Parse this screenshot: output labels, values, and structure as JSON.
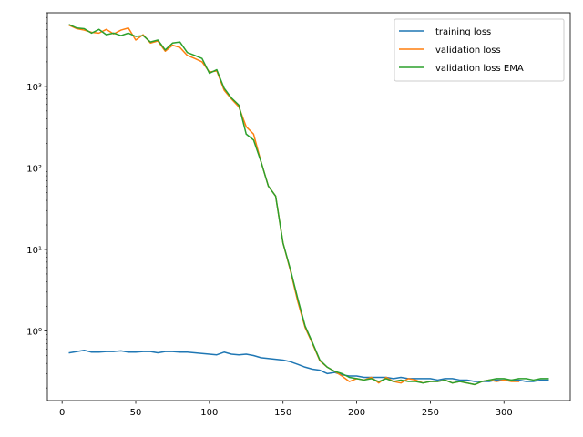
{
  "chart_data": {
    "type": "line",
    "title": "",
    "xlabel": "",
    "ylabel": "",
    "xlim": [
      -10,
      345
    ],
    "ylim": [
      0.14,
      8000
    ],
    "yscale": "log",
    "x_ticks": [
      0,
      50,
      100,
      150,
      200,
      250,
      300
    ],
    "y_ticks": [
      {
        "value": 1,
        "label": "10⁰"
      },
      {
        "value": 10,
        "label": "10¹"
      },
      {
        "value": 100,
        "label": "10²"
      },
      {
        "value": 1000,
        "label": "10³"
      }
    ],
    "grid": false,
    "legend_position": "top-right",
    "series": [
      {
        "name": "training loss",
        "color": "#1f77b4",
        "points": [
          [
            5,
            0.54
          ],
          [
            10,
            0.56
          ],
          [
            15,
            0.58
          ],
          [
            20,
            0.55
          ],
          [
            25,
            0.55
          ],
          [
            30,
            0.56
          ],
          [
            35,
            0.56
          ],
          [
            40,
            0.57
          ],
          [
            45,
            0.55
          ],
          [
            50,
            0.55
          ],
          [
            55,
            0.56
          ],
          [
            60,
            0.56
          ],
          [
            65,
            0.54
          ],
          [
            70,
            0.56
          ],
          [
            75,
            0.56
          ],
          [
            80,
            0.55
          ],
          [
            85,
            0.55
          ],
          [
            90,
            0.54
          ],
          [
            95,
            0.53
          ],
          [
            100,
            0.52
          ],
          [
            105,
            0.51
          ],
          [
            110,
            0.55
          ],
          [
            115,
            0.52
          ],
          [
            120,
            0.51
          ],
          [
            125,
            0.52
          ],
          [
            130,
            0.5
          ],
          [
            135,
            0.47
          ],
          [
            140,
            0.46
          ],
          [
            145,
            0.45
          ],
          [
            150,
            0.44
          ],
          [
            155,
            0.42
          ],
          [
            160,
            0.39
          ],
          [
            165,
            0.36
          ],
          [
            170,
            0.34
          ],
          [
            175,
            0.33
          ],
          [
            180,
            0.3
          ],
          [
            185,
            0.31
          ],
          [
            190,
            0.29
          ],
          [
            195,
            0.28
          ],
          [
            200,
            0.28
          ],
          [
            205,
            0.27
          ],
          [
            210,
            0.27
          ],
          [
            215,
            0.27
          ],
          [
            220,
            0.27
          ],
          [
            225,
            0.26
          ],
          [
            230,
            0.27
          ],
          [
            235,
            0.26
          ],
          [
            240,
            0.26
          ],
          [
            245,
            0.26
          ],
          [
            250,
            0.26
          ],
          [
            255,
            0.25
          ],
          [
            260,
            0.26
          ],
          [
            265,
            0.26
          ],
          [
            270,
            0.25
          ],
          [
            275,
            0.25
          ],
          [
            280,
            0.24
          ],
          [
            285,
            0.24
          ],
          [
            290,
            0.24
          ],
          [
            295,
            0.25
          ],
          [
            300,
            0.25
          ],
          [
            305,
            0.25
          ],
          [
            310,
            0.25
          ],
          [
            315,
            0.24
          ],
          [
            320,
            0.24
          ],
          [
            325,
            0.25
          ],
          [
            330,
            0.25
          ]
        ]
      },
      {
        "name": "validation loss",
        "color": "#ff7f0e",
        "points": [
          [
            5,
            5600
          ],
          [
            10,
            5100
          ],
          [
            15,
            4900
          ],
          [
            20,
            4600
          ],
          [
            25,
            4500
          ],
          [
            30,
            5000
          ],
          [
            35,
            4400
          ],
          [
            40,
            4900
          ],
          [
            45,
            5200
          ],
          [
            50,
            3700
          ],
          [
            55,
            4300
          ],
          [
            60,
            3400
          ],
          [
            65,
            3600
          ],
          [
            70,
            2700
          ],
          [
            75,
            3200
          ],
          [
            80,
            3000
          ],
          [
            85,
            2400
          ],
          [
            90,
            2200
          ],
          [
            95,
            2000
          ],
          [
            100,
            1500
          ],
          [
            105,
            1550
          ],
          [
            110,
            900
          ],
          [
            115,
            700
          ],
          [
            120,
            560
          ],
          [
            125,
            320
          ],
          [
            130,
            260
          ],
          [
            135,
            120
          ],
          [
            140,
            60
          ],
          [
            145,
            45
          ],
          [
            150,
            12
          ],
          [
            155,
            5.5
          ],
          [
            160,
            2.3
          ],
          [
            165,
            1.1
          ],
          [
            170,
            0.7
          ],
          [
            175,
            0.43
          ],
          [
            180,
            0.36
          ],
          [
            185,
            0.32
          ],
          [
            190,
            0.28
          ],
          [
            195,
            0.24
          ],
          [
            200,
            0.26
          ],
          [
            205,
            0.25
          ],
          [
            210,
            0.27
          ],
          [
            215,
            0.23
          ],
          [
            220,
            0.27
          ],
          [
            225,
            0.24
          ],
          [
            230,
            0.23
          ],
          [
            235,
            0.26
          ],
          [
            240,
            0.25
          ],
          [
            245,
            0.23
          ],
          [
            250,
            0.24
          ],
          [
            255,
            0.24
          ],
          [
            260,
            0.25
          ],
          [
            265,
            0.23
          ],
          [
            270,
            0.24
          ],
          [
            275,
            0.23
          ],
          [
            280,
            0.22
          ],
          [
            285,
            0.24
          ],
          [
            290,
            0.25
          ],
          [
            295,
            0.24
          ],
          [
            300,
            0.25
          ],
          [
            305,
            0.24
          ],
          [
            310,
            0.24
          ]
        ]
      },
      {
        "name": "validation loss EMA",
        "color": "#2ca02c",
        "points": [
          [
            5,
            5700
          ],
          [
            10,
            5200
          ],
          [
            15,
            5100
          ],
          [
            20,
            4500
          ],
          [
            25,
            5000
          ],
          [
            30,
            4300
          ],
          [
            35,
            4500
          ],
          [
            40,
            4200
          ],
          [
            45,
            4500
          ],
          [
            50,
            4100
          ],
          [
            55,
            4200
          ],
          [
            60,
            3500
          ],
          [
            65,
            3700
          ],
          [
            70,
            2800
          ],
          [
            75,
            3400
          ],
          [
            80,
            3500
          ],
          [
            85,
            2600
          ],
          [
            90,
            2400
          ],
          [
            95,
            2200
          ],
          [
            100,
            1450
          ],
          [
            105,
            1600
          ],
          [
            110,
            950
          ],
          [
            115,
            720
          ],
          [
            120,
            590
          ],
          [
            125,
            260
          ],
          [
            130,
            220
          ],
          [
            135,
            120
          ],
          [
            140,
            60
          ],
          [
            145,
            45
          ],
          [
            150,
            12
          ],
          [
            155,
            5.7
          ],
          [
            160,
            2.5
          ],
          [
            165,
            1.15
          ],
          [
            170,
            0.72
          ],
          [
            175,
            0.44
          ],
          [
            180,
            0.36
          ],
          [
            185,
            0.32
          ],
          [
            190,
            0.3
          ],
          [
            195,
            0.27
          ],
          [
            200,
            0.26
          ],
          [
            205,
            0.25
          ],
          [
            210,
            0.26
          ],
          [
            215,
            0.24
          ],
          [
            220,
            0.26
          ],
          [
            225,
            0.24
          ],
          [
            230,
            0.25
          ],
          [
            235,
            0.24
          ],
          [
            240,
            0.24
          ],
          [
            245,
            0.23
          ],
          [
            250,
            0.24
          ],
          [
            255,
            0.24
          ],
          [
            260,
            0.25
          ],
          [
            265,
            0.23
          ],
          [
            270,
            0.24
          ],
          [
            275,
            0.23
          ],
          [
            280,
            0.22
          ],
          [
            285,
            0.24
          ],
          [
            290,
            0.25
          ],
          [
            295,
            0.26
          ],
          [
            300,
            0.26
          ],
          [
            305,
            0.25
          ],
          [
            310,
            0.26
          ],
          [
            315,
            0.26
          ],
          [
            320,
            0.25
          ],
          [
            325,
            0.26
          ],
          [
            330,
            0.26
          ]
        ]
      }
    ]
  }
}
